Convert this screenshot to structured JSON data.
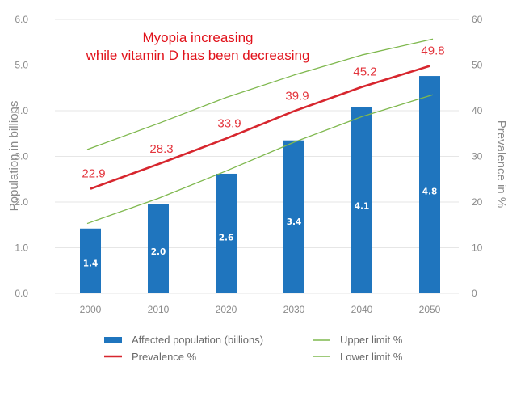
{
  "chart_data": {
    "type": "bar",
    "categories": [
      "2000",
      "2010",
      "2020",
      "2030",
      "2040",
      "2050"
    ],
    "series": [
      {
        "name": "Affected population (billions)",
        "type": "bar",
        "axis": "left",
        "color": "#1f75be",
        "values": [
          1.4,
          2.0,
          2.6,
          3.4,
          4.1,
          4.8
        ],
        "plotted": [
          1.42,
          1.95,
          2.62,
          3.35,
          4.08,
          4.76
        ]
      },
      {
        "name": "Prevalence %",
        "type": "line",
        "axis": "right",
        "color": "#d7262e",
        "values": [
          22.9,
          28.3,
          33.9,
          39.9,
          45.2,
          49.8
        ]
      },
      {
        "name": "Upper limit %",
        "type": "line",
        "axis": "right",
        "color": "#7fb84e",
        "values": [
          31.5,
          37.2,
          42.9,
          47.8,
          52.2,
          55.7
        ]
      },
      {
        "name": "Lower limit %",
        "type": "line",
        "axis": "right",
        "color": "#7fb84e",
        "values": [
          15.3,
          20.8,
          26.8,
          33.1,
          38.7,
          43.5
        ]
      }
    ],
    "ylabel": "Population in billions",
    "y2label": "Prevalence in %",
    "ylim": [
      0,
      6
    ],
    "y2lim": [
      0,
      60
    ],
    "yticks": [
      "0.0",
      "1.0",
      "2.0",
      "3.0",
      "4.0",
      "5.0",
      "6.0"
    ],
    "y2ticks": [
      "0",
      "10",
      "20",
      "30",
      "40",
      "50",
      "60"
    ],
    "annotation": [
      "Myopia increasing",
      "while vitamin D has been decreasing"
    ],
    "grid": "horizontal",
    "legend_position": "bottom"
  }
}
